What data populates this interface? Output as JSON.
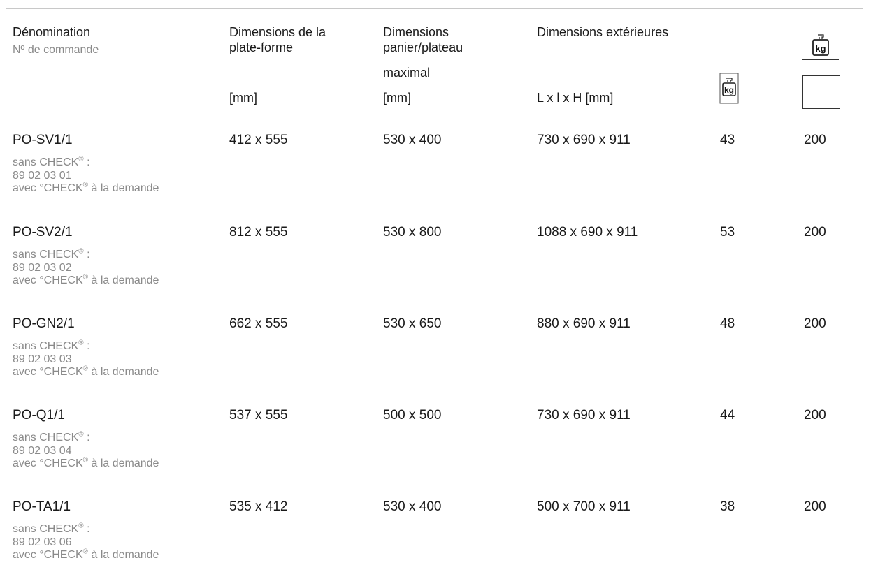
{
  "header": {
    "denomination": "Dénomination",
    "order_no": "Nº de commande",
    "platform_line1": "Dimensions de la",
    "platform_line2": "plate-forme",
    "platform_unit": "[mm]",
    "basket_line1": "Dimensions",
    "basket_line2": "panier/plateau",
    "basket_line3": "maximal",
    "basket_unit": "[mm]",
    "exterior": "Dimensions extérieures",
    "exterior_unit": "L x l x H [mm]",
    "weight_icon_label": "kg",
    "capacity_icon_label": "kg"
  },
  "rows": [
    {
      "name": "PO-SV1/1",
      "without": "sans CHECK",
      "reg": "®",
      "colon": " :",
      "number": "89 02 03 01",
      "with_pre": "avec °CHECK",
      "with_post": " à la demande",
      "platform": "412 x 555",
      "basket": "530 x 400",
      "exterior": "730 x 690 x 911",
      "weight": "43",
      "capacity": "200"
    },
    {
      "name": "PO-SV2/1",
      "without": "sans CHECK",
      "reg": "®",
      "colon": " :",
      "number": "89 02 03 02",
      "with_pre": "avec °CHECK",
      "with_post": " à la demande",
      "platform": "812 x 555",
      "basket": "530 x 800",
      "exterior": "1088 x 690 x 911",
      "weight": "53",
      "capacity": "200"
    },
    {
      "name": "PO-GN2/1",
      "without": "sans CHECK",
      "reg": "®",
      "colon": " :",
      "number": "89 02 03 03",
      "with_pre": "avec °CHECK",
      "with_post": " à la demande",
      "platform": "662 x 555",
      "basket": "530 x 650",
      "exterior": "880 x 690 x 911",
      "weight": "48",
      "capacity": "200"
    },
    {
      "name": "PO-Q1/1",
      "without": "sans CHECK",
      "reg": "®",
      "colon": " :",
      "number": "89 02 03 04",
      "with_pre": "avec °CHECK",
      "with_post": " à la demande",
      "platform": "537 x 555",
      "basket": "500 x 500",
      "exterior": "730 x 690 x 911",
      "weight": "44",
      "capacity": "200"
    },
    {
      "name": "PO-TA1/1",
      "without": "sans CHECK",
      "reg": "®",
      "colon": " :",
      "number": "89 02 03 06",
      "with_pre": "avec °CHECK",
      "with_post": " à la demande",
      "platform": "535 x 412",
      "basket": "530 x 400",
      "exterior": "500 x 700 x 911",
      "weight": "38",
      "capacity": "200"
    }
  ]
}
